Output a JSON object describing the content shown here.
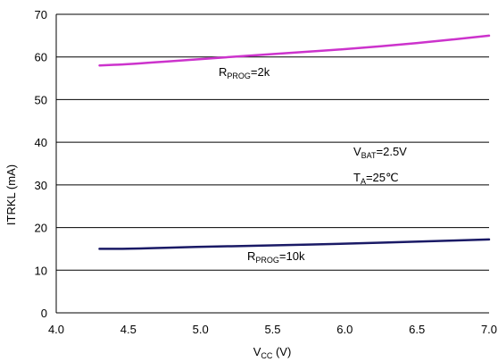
{
  "chart_data": {
    "type": "line",
    "xlabel": "Vcc (V)",
    "ylabel": "ITRKL (mA)",
    "xlim": [
      4.0,
      7.0
    ],
    "ylim": [
      0,
      70
    ],
    "x_ticks": [
      "4.0",
      "4.5",
      "5.0",
      "5.5",
      "6.0",
      "6.5",
      "7.0"
    ],
    "y_ticks": [
      "0",
      "10",
      "20",
      "30",
      "40",
      "50",
      "60",
      "70"
    ],
    "grid": "horizontal",
    "series": [
      {
        "name": "RPROG=2k",
        "color": "#cc33cc",
        "x": [
          4.3,
          4.5,
          5.0,
          5.5,
          6.0,
          6.5,
          7.0
        ],
        "values": [
          58.0,
          58.3,
          59.5,
          60.7,
          61.8,
          63.2,
          65.0
        ]
      },
      {
        "name": "RPROG=10k",
        "color": "#1a1a66",
        "x": [
          4.3,
          4.5,
          5.0,
          5.5,
          6.0,
          6.5,
          7.0
        ],
        "values": [
          15.0,
          15.0,
          15.5,
          15.8,
          16.2,
          16.7,
          17.2
        ]
      }
    ],
    "annotations": {
      "rprog_2k": {
        "main": "R",
        "sub": "PROG",
        "tail": "=2k"
      },
      "rprog_10k": {
        "main": "R",
        "sub": "PROG",
        "tail": "=10k"
      },
      "vbat": {
        "main": "V",
        "sub": "BAT",
        "tail": "=2.5V"
      },
      "ta": {
        "main": "T",
        "sub": "A",
        "tail": "=25℃"
      }
    },
    "axis_text": {
      "x_main": "V",
      "x_sub": "CC",
      "x_tail": " (V)",
      "y_text": "ITRKL (mA)"
    }
  }
}
